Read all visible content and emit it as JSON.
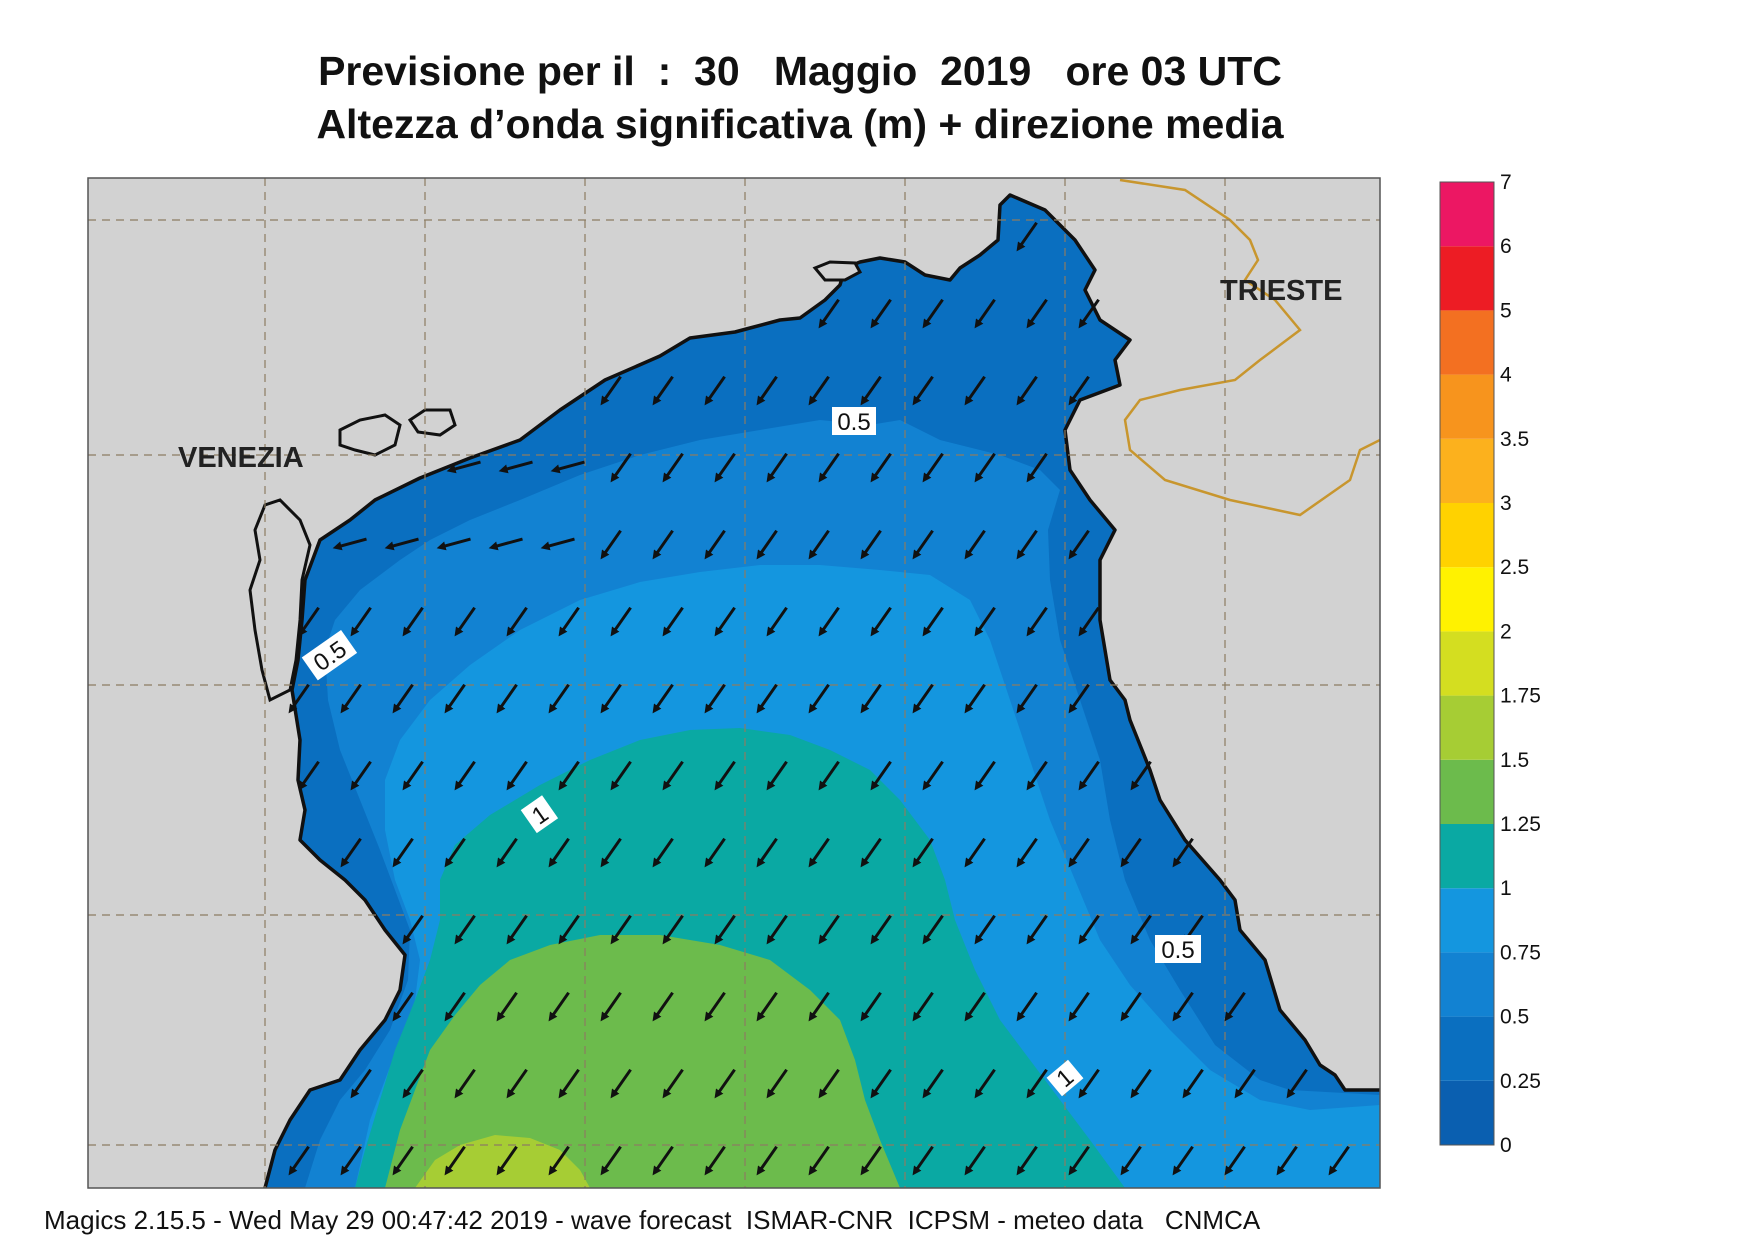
{
  "header": {
    "title_line1": "Previsione per il  :  30   Maggio  2019   ore 03 UTC",
    "title_line2": "Altezza d’onda significativa (m) + direzione media"
  },
  "map": {
    "cities": [
      {
        "id": "venezia",
        "label": "VENEZIA"
      },
      {
        "id": "trieste",
        "label": "TRIESTE"
      }
    ],
    "contour_labels": [
      "0.5",
      "0.5",
      "1",
      "0.5",
      "1"
    ],
    "wave_direction": "toward south-west",
    "colors": {
      "land": "#d2d2d2",
      "coast": "#111111",
      "border": "#c8962e"
    }
  },
  "legend": {
    "levels": [
      {
        "label": "0",
        "color": "#0a5fb0"
      },
      {
        "label": "0.25",
        "color": "#0a6fc0"
      },
      {
        "label": "0.5",
        "color": "#1282d2"
      },
      {
        "label": "0.75",
        "color": "#1496df"
      },
      {
        "label": "1",
        "color": "#0aa9a3"
      },
      {
        "label": "1.25",
        "color": "#6cbb4c"
      },
      {
        "label": "1.5",
        "color": "#a6cd34"
      },
      {
        "label": "1.75",
        "color": "#d4de20"
      },
      {
        "label": "2",
        "color": "#fff200"
      },
      {
        "label": "2.5",
        "color": "#ffd200"
      },
      {
        "label": "3",
        "color": "#fcb11d"
      },
      {
        "label": "3.5",
        "color": "#f7941d"
      },
      {
        "label": "4",
        "color": "#f37021"
      },
      {
        "label": "5",
        "color": "#ed1c24"
      },
      {
        "label": "6",
        "color": "#ec1763"
      },
      {
        "label": "7",
        "color": ""
      }
    ]
  },
  "footer": {
    "text": "Magics 2.15.5 - Wed May 29 00:47:42 2019 - wave forecast  ISMAR-CNR  ICPSM - meteo data   CNMCA"
  }
}
